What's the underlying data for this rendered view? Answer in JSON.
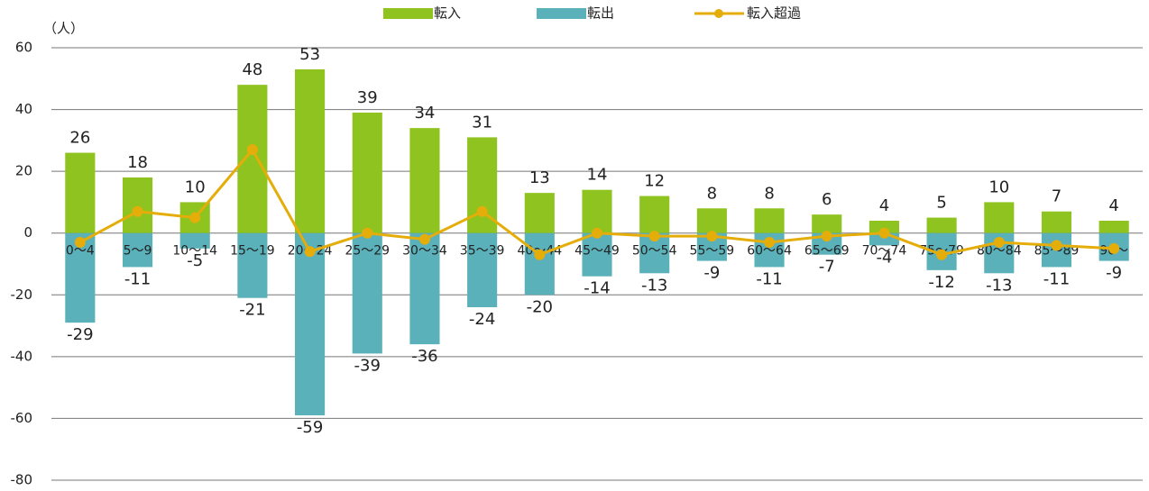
{
  "chart_data": {
    "type": "bar",
    "y_label": "（人）",
    "categories": [
      "0～4",
      "5～9",
      "10～14",
      "15～19",
      "20～24",
      "25～29",
      "30～34",
      "35～39",
      "40～44",
      "45～49",
      "50～54",
      "55～59",
      "60～64",
      "65～69",
      "70～74",
      "75～79",
      "80～84",
      "85～89",
      "90～"
    ],
    "series": [
      {
        "name": "転入",
        "type": "bar",
        "color": "#8fc31f",
        "values": [
          26,
          18,
          10,
          48,
          53,
          39,
          34,
          31,
          13,
          14,
          12,
          8,
          8,
          6,
          4,
          5,
          10,
          7,
          4
        ]
      },
      {
        "name": "転出",
        "type": "bar",
        "color": "#5bb1b9",
        "values": [
          -29,
          -11,
          -5,
          -21,
          -59,
          -39,
          -36,
          -24,
          -20,
          -14,
          -13,
          -9,
          -11,
          -7,
          -4,
          -12,
          -13,
          -11,
          -9
        ]
      },
      {
        "name": "転入超過",
        "type": "line",
        "color": "#e5ad0a",
        "values": [
          -3,
          7,
          5,
          27,
          -6,
          0,
          -2,
          7,
          -7,
          0,
          -1,
          -1,
          -3,
          -1,
          0,
          -7,
          -3,
          -4,
          -5
        ]
      }
    ],
    "ylim": [
      -80,
      60
    ],
    "yticks": [
      -80,
      -60,
      -40,
      -20,
      0,
      20,
      40,
      60
    ],
    "grid": true
  }
}
